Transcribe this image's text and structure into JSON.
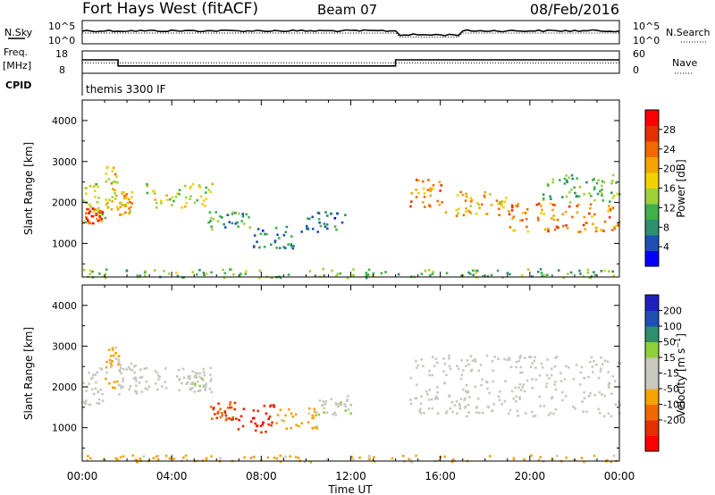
{
  "header": {
    "station": "Fort Hays West (fitACF)",
    "beam": "Beam 07",
    "date": "08/Feb/2016"
  },
  "noise_panel": {
    "left_label": "N.Sky",
    "left_ticks": [
      "10^5",
      "10^0"
    ],
    "right_label": "N.Search",
    "right_ticks": [
      "10^5",
      "10^0"
    ]
  },
  "freq_panel": {
    "left_label_1": "Freq.",
    "left_label_2": "[MHz]",
    "left_ticks": [
      "18",
      "8"
    ],
    "right_label": "Nave",
    "right_ticks": [
      "60",
      "0"
    ],
    "steps": [
      {
        "from": 0.0,
        "to": 1.6,
        "freq": 14.0
      },
      {
        "from": 1.6,
        "to": 14.0,
        "freq": 11.3
      },
      {
        "from": 14.0,
        "to": 24.0,
        "freq": 14.0
      }
    ],
    "nave_dotted": 28
  },
  "cpid": {
    "label": "CPID",
    "value": "themis 3300 IF"
  },
  "colors": {
    "power": [
      "#0000ff",
      "#1f4fb4",
      "#2e8f6e",
      "#3fb04a",
      "#9fd23a",
      "#f0d200",
      "#f5a300",
      "#f06a00",
      "#e53000",
      "#ff0000"
    ],
    "velocity": [
      "#ff0000",
      "#e53000",
      "#f06a00",
      "#f5a300",
      "#c8c8c0",
      "#c8c8c0",
      "#8fd03a",
      "#2e8f6e",
      "#1f4fb4",
      "#2020c0"
    ]
  },
  "chart_data": [
    {
      "type": "heatmap",
      "quantity": "power",
      "ylabel": "Slant Range [km]",
      "ylim": [
        180,
        4500
      ],
      "yticks": [
        "4000",
        "3000",
        "2000",
        "1000"
      ],
      "xlim": [
        0,
        24
      ],
      "colorbar_label": "Power [dB]",
      "colorbar_ticks": [
        "28",
        "24",
        "20",
        "16",
        "12",
        "8",
        "4"
      ],
      "colorbar_range": [
        0,
        32
      ],
      "bands": [
        {
          "t0": 0.0,
          "t1": 1.0,
          "r0": 1400,
          "r1": 2500,
          "v": 15
        },
        {
          "t0": 0.1,
          "t1": 0.9,
          "r0": 1500,
          "r1": 1900,
          "v": 26
        },
        {
          "t0": 1.0,
          "t1": 1.6,
          "r0": 1800,
          "r1": 2900,
          "v": 18
        },
        {
          "t0": 1.6,
          "t1": 2.2,
          "r0": 1700,
          "r1": 2300,
          "v": 20
        },
        {
          "t0": 2.8,
          "t1": 5.8,
          "r0": 1900,
          "r1": 2500,
          "v": 15
        },
        {
          "t0": 5.6,
          "t1": 7.6,
          "r0": 1300,
          "r1": 1800,
          "v": 10
        },
        {
          "t0": 7.6,
          "t1": 9.6,
          "r0": 900,
          "r1": 1500,
          "v": 8
        },
        {
          "t0": 9.6,
          "t1": 11.8,
          "r0": 1300,
          "r1": 1800,
          "v": 8
        },
        {
          "t0": 14.6,
          "t1": 16.0,
          "r0": 1900,
          "r1": 2600,
          "v": 22
        },
        {
          "t0": 16.0,
          "t1": 19.0,
          "r0": 1700,
          "r1": 2300,
          "v": 20
        },
        {
          "t0": 19.0,
          "t1": 24.0,
          "r0": 1300,
          "r1": 2000,
          "v": 23
        },
        {
          "t0": 20.5,
          "t1": 24.0,
          "r0": 2000,
          "r1": 2700,
          "v": 12
        },
        {
          "t0": 0.0,
          "t1": 24.0,
          "r0": 180,
          "r1": 400,
          "v": 12
        }
      ]
    },
    {
      "type": "heatmap",
      "quantity": "velocity",
      "ylabel": "Slant Range [km]",
      "ylim": [
        180,
        4500
      ],
      "yticks": [
        "4000",
        "3000",
        "2000",
        "1000"
      ],
      "xlim": [
        0,
        24
      ],
      "xlabel": "Time UT",
      "xticks": [
        "00:00",
        "04:00",
        "08:00",
        "12:00",
        "16:00",
        "20:00",
        "00:00"
      ],
      "colorbar_label": "Velocity [m s^-1]",
      "colorbar_ticks": [
        "200",
        "100",
        "50",
        "15",
        "-15",
        "-50",
        "-100",
        "-200"
      ],
      "colorbar_range": [
        -250,
        250
      ],
      "bands": [
        {
          "t0": 0.0,
          "t1": 1.0,
          "r0": 1500,
          "r1": 2500,
          "v": 0
        },
        {
          "t0": 1.0,
          "t1": 1.6,
          "r0": 2000,
          "r1": 3000,
          "v": -60
        },
        {
          "t0": 1.6,
          "t1": 2.4,
          "r0": 1800,
          "r1": 2600,
          "v": 0
        },
        {
          "t0": 2.4,
          "t1": 5.8,
          "r0": 1900,
          "r1": 2500,
          "v": 0
        },
        {
          "t0": 4.5,
          "t1": 5.5,
          "r0": 1900,
          "r1": 2300,
          "v": 30
        },
        {
          "t0": 5.6,
          "t1": 6.8,
          "r0": 1200,
          "r1": 1700,
          "v": -150
        },
        {
          "t0": 6.8,
          "t1": 8.6,
          "r0": 900,
          "r1": 1600,
          "v": -200
        },
        {
          "t0": 8.6,
          "t1": 10.5,
          "r0": 1000,
          "r1": 1500,
          "v": -70
        },
        {
          "t0": 10.5,
          "t1": 12.0,
          "r0": 1300,
          "r1": 1800,
          "v": 30
        },
        {
          "t0": 14.6,
          "t1": 24.0,
          "r0": 1300,
          "r1": 2800,
          "v": 0
        },
        {
          "t0": 0.0,
          "t1": 24.0,
          "r0": 180,
          "r1": 350,
          "v": -60
        }
      ]
    }
  ]
}
